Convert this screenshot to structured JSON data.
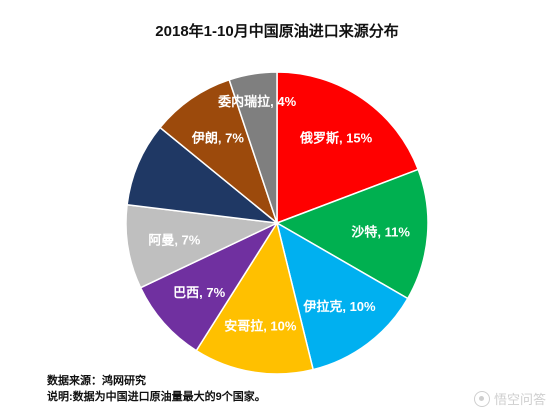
{
  "chart_data": {
    "type": "pie",
    "title": "2018年1-10月中国原油进口来源分布",
    "slices": [
      {
        "label": "俄罗斯",
        "value": 15,
        "color": "#ff0000"
      },
      {
        "label": "沙特",
        "value": 11,
        "color": "#00b050"
      },
      {
        "label": "伊拉克",
        "value": 10,
        "color": "#00b0f0"
      },
      {
        "label": "安哥拉",
        "value": 10,
        "color": "#ffc000"
      },
      {
        "label": "巴西",
        "value": 7,
        "color": "#7030a0"
      },
      {
        "label": "阿曼",
        "value": 7,
        "color": "#bfbfbf"
      },
      {
        "label": "",
        "value": 7,
        "color": "#1f3864"
      },
      {
        "label": "伊朗",
        "value": 7,
        "color": "#9c4a0c"
      },
      {
        "label": "委内瑞拉",
        "value": 4,
        "color": "#7f7f7f"
      }
    ],
    "value_suffix": "%"
  },
  "footer": {
    "source": "数据来源：鸿网研究",
    "note": "说明:数据为中国进口原油量最大的9个国家。"
  },
  "watermark": {
    "text": "悟空问答"
  }
}
